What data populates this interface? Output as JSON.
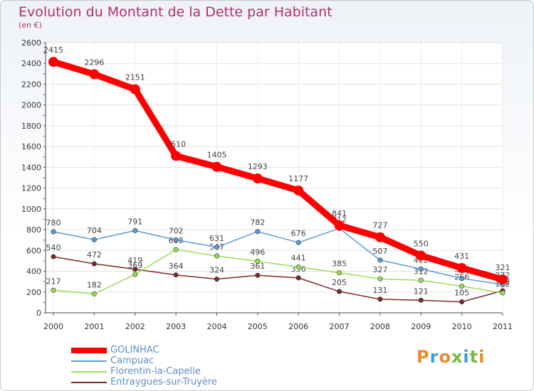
{
  "header": {
    "title": "Evolution du Montant de la Dette par Habitant",
    "unit": "(en €)"
  },
  "logo": {
    "text": "Proxiti",
    "colors": [
      "#e98a2c",
      "#3aa0d8",
      "#e98a2c",
      "#7ab83f",
      "#3aa0d8",
      "#7ab83f",
      "#e98a2c"
    ]
  },
  "chart_data": {
    "type": "line",
    "title": "Evolution du Montant de la Dette par Habitant",
    "ylabel": "(en €)",
    "xlabel": "",
    "ylim": [
      0,
      2600
    ],
    "yticks": [
      0,
      200,
      400,
      600,
      800,
      1000,
      1200,
      1400,
      1600,
      1800,
      2000,
      2200,
      2400,
      2600
    ],
    "categories": [
      "2000",
      "2001",
      "2002",
      "2003",
      "2004",
      "2005",
      "2006",
      "2007",
      "2008",
      "2009",
      "2010",
      "2011"
    ],
    "grid": true,
    "legend_position": "bottom",
    "series": [
      {
        "name": "GOLINHAC",
        "color": "#ff0000",
        "values": [
          2415,
          2296,
          2151,
          1510,
          1405,
          1293,
          1177,
          841,
          727,
          550,
          431,
          321
        ]
      },
      {
        "name": "Campuac",
        "color": "#5b9bd5",
        "values": [
          780,
          704,
          791,
          702,
          631,
          782,
          676,
          812,
          507,
          422,
          331,
          272
        ]
      },
      {
        "name": "Florentin-la-Capelle",
        "color": "#99dd55",
        "values": [
          217,
          182,
          369,
          608,
          547,
          496,
          441,
          385,
          327,
          312,
          256,
          192
        ]
      },
      {
        "name": "Entraygues-sur-Truyère",
        "color": "#7a2a2a",
        "values": [
          540,
          472,
          419,
          364,
          324,
          361,
          336,
          205,
          131,
          121,
          105,
          212
        ]
      }
    ]
  }
}
